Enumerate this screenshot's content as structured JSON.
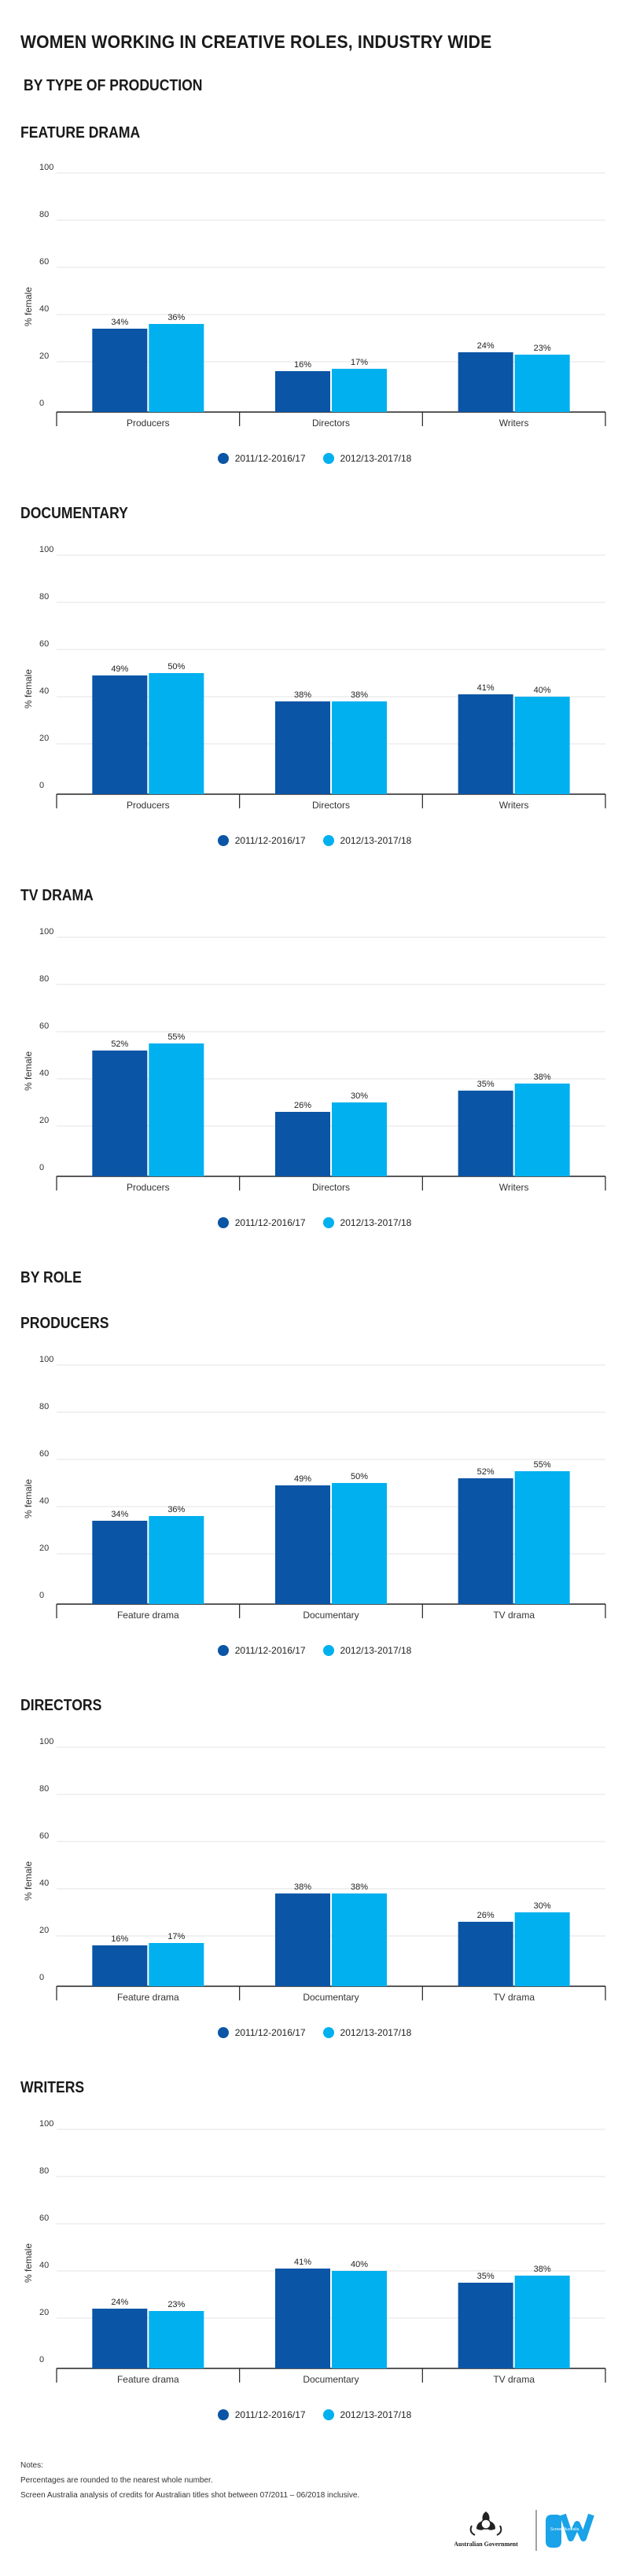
{
  "page": {
    "title": "WOMEN WORKING IN CREATIVE ROLES, INDUSTRY WIDE",
    "section_production": "BY TYPE OF PRODUCTION",
    "section_role": "BY ROLE"
  },
  "legend": {
    "series1": "2011/12-2016/17",
    "series2": "2012/13-2017/18"
  },
  "colors": {
    "series1": "#0a55a6",
    "series2": "#00b0ef"
  },
  "charts": [
    {
      "title": "FEATURE DRAMA"
    },
    {
      "title": "DOCUMENTARY"
    },
    {
      "title": "TV DRAMA"
    },
    {
      "title": "PRODUCERS"
    },
    {
      "title": "DIRECTORS"
    },
    {
      "title": "WRITERS"
    }
  ],
  "chart_data": [
    {
      "type": "bar",
      "title": "FEATURE DRAMA",
      "ylabel": "% female",
      "ylim": [
        0,
        100
      ],
      "yticks": [
        0,
        20,
        40,
        60,
        80,
        100
      ],
      "grid": true,
      "categories": [
        "Producers",
        "Directors",
        "Writers"
      ],
      "series": [
        {
          "name": "2011/12-2016/17",
          "values": [
            34,
            16,
            24
          ]
        },
        {
          "name": "2012/13-2017/18",
          "values": [
            36,
            17,
            23
          ]
        }
      ]
    },
    {
      "type": "bar",
      "title": "DOCUMENTARY",
      "ylabel": "% female",
      "ylim": [
        0,
        100
      ],
      "yticks": [
        0,
        20,
        40,
        60,
        80,
        100
      ],
      "grid": true,
      "categories": [
        "Producers",
        "Directors",
        "Writers"
      ],
      "series": [
        {
          "name": "2011/12-2016/17",
          "values": [
            49,
            38,
            41
          ]
        },
        {
          "name": "2012/13-2017/18",
          "values": [
            50,
            38,
            40
          ]
        }
      ]
    },
    {
      "type": "bar",
      "title": "TV DRAMA",
      "ylabel": "% female",
      "ylim": [
        0,
        100
      ],
      "yticks": [
        0,
        20,
        40,
        60,
        80,
        100
      ],
      "grid": true,
      "categories": [
        "Producers",
        "Directors",
        "Writers"
      ],
      "series": [
        {
          "name": "2011/12-2016/17",
          "values": [
            52,
            26,
            35
          ]
        },
        {
          "name": "2012/13-2017/18",
          "values": [
            55,
            30,
            38
          ]
        }
      ]
    },
    {
      "type": "bar",
      "title": "PRODUCERS",
      "ylabel": "% female",
      "ylim": [
        0,
        100
      ],
      "yticks": [
        0,
        20,
        40,
        60,
        80,
        100
      ],
      "grid": true,
      "categories": [
        "Feature drama",
        "Documentary",
        "TV drama"
      ],
      "series": [
        {
          "name": "2011/12-2016/17",
          "values": [
            34,
            49,
            52
          ]
        },
        {
          "name": "2012/13-2017/18",
          "values": [
            36,
            50,
            55
          ]
        }
      ]
    },
    {
      "type": "bar",
      "title": "DIRECTORS",
      "ylabel": "% female",
      "ylim": [
        0,
        100
      ],
      "yticks": [
        0,
        20,
        40,
        60,
        80,
        100
      ],
      "grid": true,
      "categories": [
        "Feature drama",
        "Documentary",
        "TV drama"
      ],
      "series": [
        {
          "name": "2011/12-2016/17",
          "values": [
            16,
            38,
            26
          ]
        },
        {
          "name": "2012/13-2017/18",
          "values": [
            17,
            38,
            30
          ]
        }
      ]
    },
    {
      "type": "bar",
      "title": "WRITERS",
      "ylabel": "% female",
      "ylim": [
        0,
        100
      ],
      "yticks": [
        0,
        20,
        40,
        60,
        80,
        100
      ],
      "grid": true,
      "categories": [
        "Feature drama",
        "Documentary",
        "TV drama"
      ],
      "series": [
        {
          "name": "2011/12-2016/17",
          "values": [
            24,
            41,
            35
          ]
        },
        {
          "name": "2012/13-2017/18",
          "values": [
            23,
            40,
            38
          ]
        }
      ]
    }
  ],
  "notes": {
    "heading": "Notes:",
    "line1": "Percentages are rounded to the nearest whole number.",
    "line2": "Screen Australia analysis of credits for Australian titles shot between 07/2011 – 06/2018 inclusive."
  },
  "footer": {
    "gov_label": "Australian Government",
    "agency_label": "Screen Australia"
  }
}
